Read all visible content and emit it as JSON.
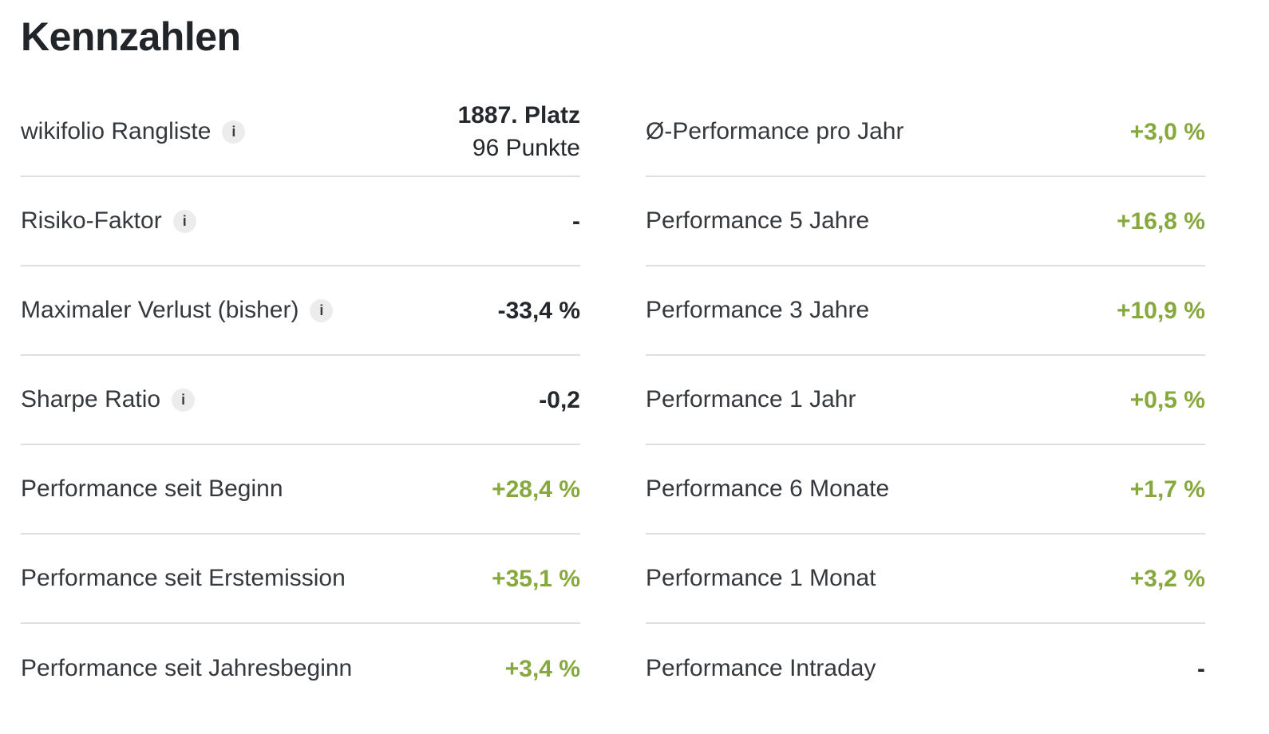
{
  "section": {
    "title": "Kennzahlen"
  },
  "colors": {
    "positive_value": "#86a83c",
    "label_text": "#35393e",
    "value_text": "#24272b",
    "title_text": "#212428",
    "divider": "#dfdfdf",
    "info_icon_bg": "#ececec",
    "info_icon_glyph": "#3a3d40",
    "page_bg": "#ffffff"
  },
  "icons": {
    "info_glyph": "i"
  },
  "metrics": {
    "left": [
      {
        "label": "wikifolio Rangliste",
        "has_info": true,
        "value": "1887. Platz",
        "value2": "96 Punkte"
      },
      {
        "label": "Risiko-Faktor",
        "has_info": true,
        "value": "-"
      },
      {
        "label": "Maximaler Verlust (bisher)",
        "has_info": true,
        "value": "-33,4 %"
      },
      {
        "label": "Sharpe Ratio",
        "has_info": true,
        "value": "-0,2"
      },
      {
        "label": "Performance seit Beginn",
        "has_info": false,
        "value": "+28,4 %"
      },
      {
        "label": "Performance seit Erstemission",
        "has_info": false,
        "value": "+35,1 %"
      },
      {
        "label": "Performance seit Jahresbeginn",
        "has_info": false,
        "value": "+3,4 %"
      }
    ],
    "right": [
      {
        "label": "Ø-Performance pro Jahr",
        "has_info": false,
        "value": "+3,0 %"
      },
      {
        "label": "Performance 5 Jahre",
        "has_info": false,
        "value": "+16,8 %"
      },
      {
        "label": "Performance 3 Jahre",
        "has_info": false,
        "value": "+10,9 %"
      },
      {
        "label": "Performance 1 Jahr",
        "has_info": false,
        "value": "+0,5 %"
      },
      {
        "label": "Performance 6 Monate",
        "has_info": false,
        "value": "+1,7 %"
      },
      {
        "label": "Performance 1 Monat",
        "has_info": false,
        "value": "+3,2 %"
      },
      {
        "label": "Performance Intraday",
        "has_info": false,
        "value": "-"
      }
    ]
  }
}
